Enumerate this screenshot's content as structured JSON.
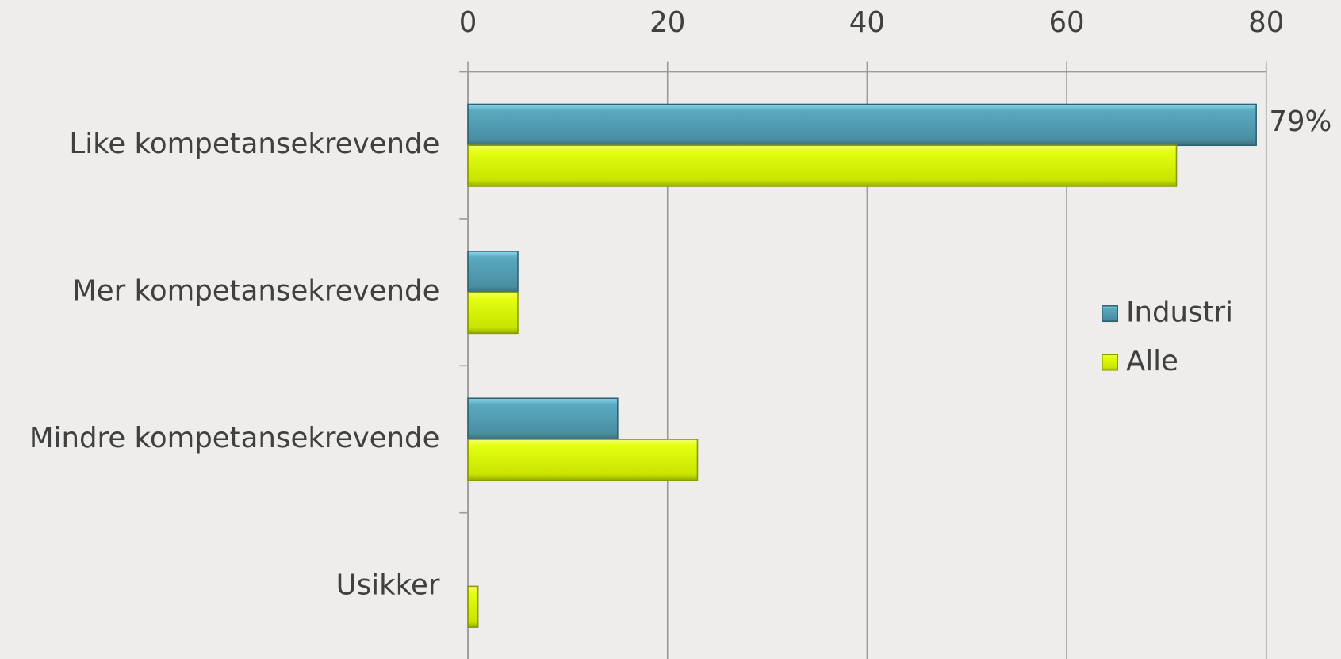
{
  "chart_data": {
    "type": "bar",
    "orientation": "horizontal",
    "categories": [
      "Like kompetansekrevende",
      "Mer kompetansekrevende",
      "Mindre kompetansekrevende",
      "Usikker"
    ],
    "series": [
      {
        "name": "Industri",
        "color": "#4a9ab0",
        "values": [
          79,
          5,
          15,
          0
        ],
        "value_labels": [
          "79%",
          null,
          null,
          null
        ]
      },
      {
        "name": "Alle",
        "color": "#d4f000",
        "values": [
          71,
          5,
          23,
          1
        ]
      }
    ],
    "xlim": [
      0,
      80
    ],
    "xticks": [
      0,
      20,
      40,
      60,
      80
    ],
    "grid": true,
    "legend": "right"
  }
}
